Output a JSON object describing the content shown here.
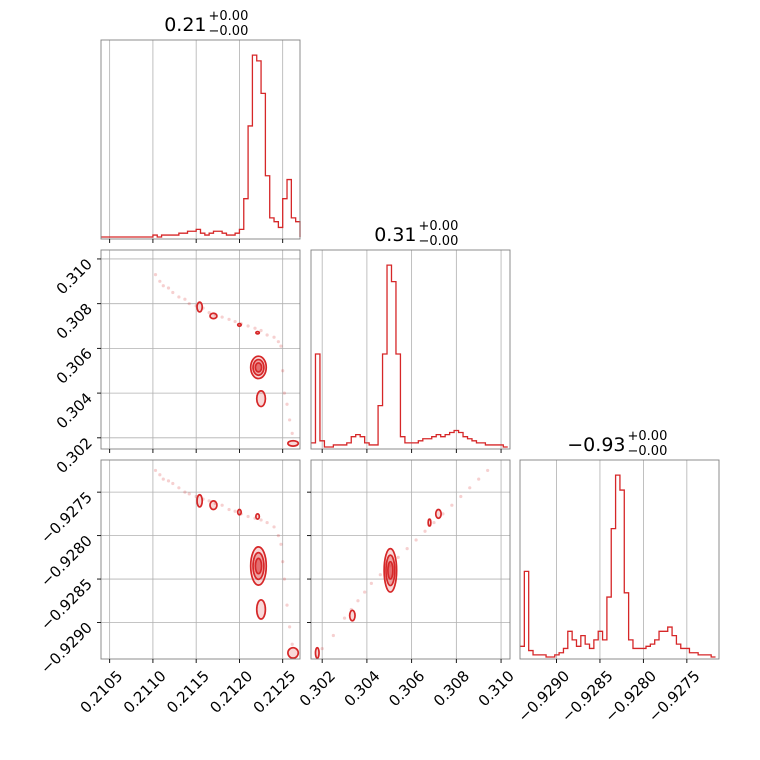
{
  "chart_data": {
    "type": "corner",
    "color": "#d62728",
    "grid": true,
    "titles": [
      {
        "main": "0.21",
        "sup": "+0.00",
        "sub": "−0.00"
      },
      {
        "main": "0.31",
        "sup": "+0.00",
        "sub": "−0.00"
      },
      {
        "main": "−0.93",
        "sup": "+0.00",
        "sub": "−0.00"
      }
    ],
    "parameters": [
      {
        "range": [
          0.2104,
          0.2127
        ],
        "ticks": [
          0.2105,
          0.211,
          0.2115,
          0.212,
          0.2125
        ],
        "tick_labels": [
          "0.2105",
          "0.2110",
          "0.2115",
          "0.2120",
          "0.2125"
        ]
      },
      {
        "range": [
          0.3015,
          0.3104
        ],
        "ticks": [
          0.302,
          0.304,
          0.306,
          0.308,
          0.31
        ],
        "tick_labels": [
          "0.302",
          "0.304",
          "0.306",
          "0.308",
          "0.310"
        ]
      },
      {
        "range": [
          -0.92942,
          -0.92713
        ],
        "ticks": [
          -0.929,
          -0.9285,
          -0.928,
          -0.9275
        ],
        "tick_labels": [
          "−0.9290",
          "−0.9285",
          "−0.9280",
          "−0.9275"
        ]
      }
    ],
    "histograms": [
      {
        "param": 0,
        "bin_edges": [
          0.2104,
          0.21045,
          0.2105,
          0.21055,
          0.2106,
          0.21065,
          0.2107,
          0.21075,
          0.2108,
          0.21085,
          0.2109,
          0.21095,
          0.211,
          0.21105,
          0.2111,
          0.21115,
          0.2112,
          0.21125,
          0.2113,
          0.21135,
          0.2114,
          0.21145,
          0.2115,
          0.21155,
          0.2116,
          0.21165,
          0.2117,
          0.21175,
          0.2118,
          0.21185,
          0.2119,
          0.21195,
          0.212,
          0.21205,
          0.2121,
          0.21215,
          0.2122,
          0.21225,
          0.2123,
          0.21235,
          0.2124,
          0.21245,
          0.2125,
          0.21255,
          0.2126,
          0.21265,
          0.2127
        ],
        "counts": [
          0,
          0,
          0,
          0,
          0,
          0,
          0,
          0,
          0,
          0,
          0,
          0,
          1,
          0,
          1,
          1,
          1,
          1,
          2,
          2,
          3,
          3,
          4,
          2,
          1,
          2,
          3,
          3,
          2,
          1,
          1,
          2,
          4,
          20,
          58,
          95,
          92,
          75,
          32,
          10,
          8,
          5,
          20,
          30,
          10,
          8,
          0
        ]
      },
      {
        "param": 1,
        "bin_edges": [
          0.3015,
          0.3017,
          0.3019,
          0.3021,
          0.3023,
          0.3025,
          0.3027,
          0.3029,
          0.3031,
          0.3033,
          0.3035,
          0.3037,
          0.3039,
          0.3041,
          0.3043,
          0.3045,
          0.3047,
          0.3049,
          0.3051,
          0.3053,
          0.3055,
          0.3057,
          0.3059,
          0.3061,
          0.3063,
          0.3065,
          0.3067,
          0.3069,
          0.3071,
          0.3073,
          0.3075,
          0.3077,
          0.3079,
          0.3081,
          0.3083,
          0.3085,
          0.3087,
          0.3089,
          0.3091,
          0.3093,
          0.3095,
          0.3097,
          0.3099,
          0.3101,
          0.3103
        ],
        "counts": [
          2,
          45,
          3,
          0,
          0,
          1,
          1,
          1,
          2,
          5,
          6,
          5,
          2,
          1,
          1,
          20,
          45,
          88,
          80,
          45,
          5,
          2,
          2,
          2,
          3,
          4,
          4,
          5,
          6,
          5,
          6,
          7,
          8,
          7,
          5,
          4,
          3,
          2,
          2,
          1,
          1,
          1,
          1,
          0
        ]
      },
      {
        "param": 2,
        "bin_edges": [
          -0.92942,
          -0.92937,
          -0.92932,
          -0.92927,
          -0.92922,
          -0.92917,
          -0.92912,
          -0.92907,
          -0.92902,
          -0.92897,
          -0.92892,
          -0.92887,
          -0.92882,
          -0.92877,
          -0.92872,
          -0.92867,
          -0.92862,
          -0.92857,
          -0.92852,
          -0.92847,
          -0.92842,
          -0.92837,
          -0.92832,
          -0.92827,
          -0.92822,
          -0.92817,
          -0.92812,
          -0.92807,
          -0.92802,
          -0.92797,
          -0.92792,
          -0.92787,
          -0.92782,
          -0.92777,
          -0.92772,
          -0.92767,
          -0.92762,
          -0.92757,
          -0.92752,
          -0.92747,
          -0.92742,
          -0.92737,
          -0.92732,
          -0.92727,
          -0.92722,
          -0.92717
        ],
        "counts": [
          5,
          40,
          3,
          1,
          1,
          1,
          0,
          0,
          1,
          2,
          4,
          12,
          8,
          5,
          10,
          6,
          4,
          8,
          12,
          8,
          28,
          60,
          85,
          78,
          30,
          8,
          4,
          4,
          4,
          5,
          6,
          8,
          12,
          12,
          14,
          10,
          6,
          4,
          4,
          2,
          2,
          1,
          1,
          1,
          0
        ]
      }
    ],
    "scatter_samples": [
      {
        "x_param": 0,
        "y_param": 1,
        "x": [
          0.21103,
          0.21108,
          0.21112,
          0.21118,
          0.21123,
          0.2113,
          0.21137,
          0.21142,
          0.2115,
          0.21158,
          0.21165,
          0.21172,
          0.2118,
          0.21188,
          0.21195,
          0.21202,
          0.2121,
          0.21218,
          0.21225,
          0.21232,
          0.2124,
          0.21245,
          0.21248,
          0.2125,
          0.21252,
          0.21255,
          0.21258,
          0.21261
        ],
        "y": [
          0.3093,
          0.309,
          0.3088,
          0.3087,
          0.3085,
          0.3083,
          0.3082,
          0.308,
          0.3079,
          0.3078,
          0.3076,
          0.3075,
          0.3074,
          0.3073,
          0.3072,
          0.3071,
          0.307,
          0.3069,
          0.3068,
          0.3066,
          0.3065,
          0.3063,
          0.3061,
          0.305,
          0.304,
          0.3035,
          0.3028,
          0.3022
        ]
      },
      {
        "x_param": 0,
        "y_param": 2,
        "x": [
          0.21103,
          0.21108,
          0.21112,
          0.21118,
          0.21123,
          0.2113,
          0.21137,
          0.21142,
          0.2115,
          0.21158,
          0.21165,
          0.21172,
          0.2118,
          0.21188,
          0.21195,
          0.21202,
          0.2121,
          0.21218,
          0.21225,
          0.21232,
          0.2124,
          0.21245,
          0.21248,
          0.2125,
          0.21252,
          0.21255,
          0.21258,
          0.21261
        ],
        "y": [
          -0.92725,
          -0.9273,
          -0.92735,
          -0.92737,
          -0.9274,
          -0.92745,
          -0.9275,
          -0.92752,
          -0.92755,
          -0.92758,
          -0.9276,
          -0.92763,
          -0.92765,
          -0.9277,
          -0.92772,
          -0.92775,
          -0.92778,
          -0.9278,
          -0.92782,
          -0.92785,
          -0.9279,
          -0.928,
          -0.9281,
          -0.9283,
          -0.9285,
          -0.9288,
          -0.92905,
          -0.92925
        ]
      },
      {
        "x_param": 1,
        "y_param": 2,
        "x": [
          0.302,
          0.3025,
          0.303,
          0.3033,
          0.3036,
          0.3039,
          0.3042,
          0.3046,
          0.305,
          0.3054,
          0.3058,
          0.3062,
          0.3066,
          0.307,
          0.3074,
          0.3078,
          0.3082,
          0.3086,
          0.309,
          0.3094
        ],
        "y": [
          -0.9293,
          -0.92915,
          -0.92895,
          -0.92885,
          -0.92875,
          -0.92865,
          -0.92855,
          -0.92845,
          -0.92835,
          -0.92825,
          -0.92815,
          -0.92805,
          -0.92795,
          -0.92785,
          -0.92775,
          -0.92765,
          -0.92755,
          -0.92745,
          -0.92735,
          -0.92725
        ]
      }
    ],
    "contour_blobs": [
      {
        "x_param": 0,
        "y_param": 1,
        "cx": 0.21222,
        "cy": 0.30515,
        "rx": 9e-05,
        "ry": 0.0005,
        "levels": 3
      },
      {
        "x_param": 0,
        "y_param": 1,
        "cx": 0.21225,
        "cy": 0.30375,
        "rx": 5e-05,
        "ry": 0.00035,
        "levels": 1
      },
      {
        "x_param": 0,
        "y_param": 1,
        "cx": 0.21154,
        "cy": 0.30785,
        "rx": 3e-05,
        "ry": 0.00022,
        "levels": 1
      },
      {
        "x_param": 0,
        "y_param": 1,
        "cx": 0.2117,
        "cy": 0.30745,
        "rx": 4e-05,
        "ry": 0.00012,
        "levels": 1
      },
      {
        "x_param": 0,
        "y_param": 1,
        "cx": 0.212,
        "cy": 0.30705,
        "rx": 2e-05,
        "ry": 6e-05,
        "levels": 1
      },
      {
        "x_param": 0,
        "y_param": 1,
        "cx": 0.21221,
        "cy": 0.3067,
        "rx": 2e-05,
        "ry": 5e-05,
        "levels": 1
      },
      {
        "x_param": 0,
        "y_param": 1,
        "cx": 0.21262,
        "cy": 0.30175,
        "rx": 6e-05,
        "ry": 0.00012,
        "levels": 1
      },
      {
        "x_param": 0,
        "y_param": 2,
        "cx": 0.21222,
        "cy": -0.92835,
        "rx": 9e-05,
        "ry": 0.00022,
        "levels": 3
      },
      {
        "x_param": 0,
        "y_param": 2,
        "cx": 0.21225,
        "cy": -0.92885,
        "rx": 5e-05,
        "ry": 0.00011,
        "levels": 1
      },
      {
        "x_param": 0,
        "y_param": 2,
        "cx": 0.21154,
        "cy": -0.9276,
        "rx": 3e-05,
        "ry": 7e-05,
        "levels": 1
      },
      {
        "x_param": 0,
        "y_param": 2,
        "cx": 0.2117,
        "cy": -0.92765,
        "rx": 4e-05,
        "ry": 5e-05,
        "levels": 1
      },
      {
        "x_param": 0,
        "y_param": 2,
        "cx": 0.212,
        "cy": -0.92773,
        "rx": 2e-05,
        "ry": 3e-05,
        "levels": 1
      },
      {
        "x_param": 0,
        "y_param": 2,
        "cx": 0.21221,
        "cy": -0.92778,
        "rx": 2e-05,
        "ry": 3e-05,
        "levels": 1
      },
      {
        "x_param": 0,
        "y_param": 2,
        "cx": 0.21262,
        "cy": -0.92935,
        "rx": 6e-05,
        "ry": 6e-05,
        "levels": 1
      },
      {
        "x_param": 1,
        "y_param": 2,
        "cx": 0.30505,
        "cy": -0.9284,
        "rx": 0.00028,
        "ry": 0.00025,
        "levels": 3
      },
      {
        "x_param": 1,
        "y_param": 2,
        "cx": 0.30335,
        "cy": -0.92892,
        "rx": 0.00012,
        "ry": 6e-05,
        "levels": 1
      },
      {
        "x_param": 1,
        "y_param": 2,
        "cx": 0.3072,
        "cy": -0.92775,
        "rx": 0.00012,
        "ry": 5e-05,
        "levels": 1
      },
      {
        "x_param": 1,
        "y_param": 2,
        "cx": 0.3068,
        "cy": -0.92785,
        "rx": 6e-05,
        "ry": 4e-05,
        "levels": 1
      },
      {
        "x_param": 1,
        "y_param": 2,
        "cx": 0.30178,
        "cy": -0.92935,
        "rx": 8e-05,
        "ry": 6e-05,
        "levels": 1
      }
    ]
  }
}
